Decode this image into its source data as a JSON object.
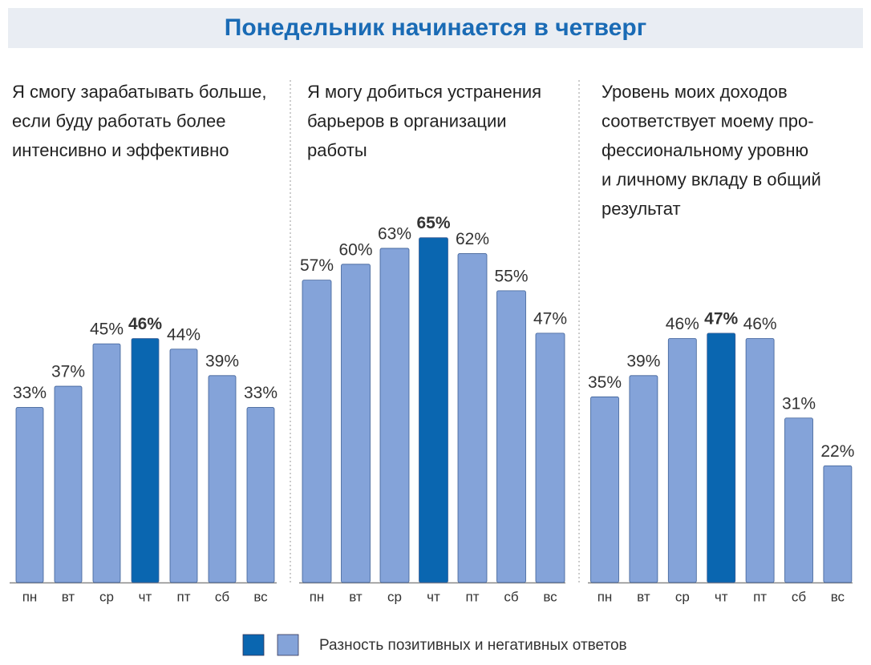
{
  "title": "Понедельник начинается в четверг",
  "legend": {
    "label": "Разность позитивных и негативных ответов",
    "colors": [
      "#0a66b0",
      "#84a3d9"
    ]
  },
  "chart_data": [
    {
      "type": "bar",
      "title": [
        "Я смогу зарабатывать больше,",
        "если буду работать более",
        "интенсивно и эффективно"
      ],
      "categories": [
        "пн",
        "вт",
        "ср",
        "чт",
        "пт",
        "сб",
        "вс"
      ],
      "values": [
        33,
        37,
        45,
        46,
        44,
        39,
        33
      ],
      "value_labels": [
        "33%",
        "37%",
        "45%",
        "46%",
        "44%",
        "39%",
        "33%"
      ],
      "color": "#84a3d9",
      "colors": [
        "#84a3d9",
        "#84a3d9",
        "#84a3d9",
        "#0a66b0",
        "#84a3d9",
        "#84a3d9",
        "#84a3d9"
      ]
    },
    {
      "type": "bar",
      "title": [
        "Я могу добиться устранения",
        "барьеров в организации",
        "работы"
      ],
      "categories": [
        "пн",
        "вт",
        "ср",
        "чт",
        "пт",
        "сб",
        "вс"
      ],
      "values": [
        57,
        60,
        63,
        65,
        62,
        55,
        47
      ],
      "value_labels": [
        "57%",
        "60%",
        "63%",
        "65%",
        "62%",
        "55%",
        "47%"
      ],
      "color": "#84a3d9",
      "colors": [
        "#84a3d9",
        "#84a3d9",
        "#84a3d9",
        "#0a66b0",
        "#84a3d9",
        "#84a3d9",
        "#84a3d9"
      ]
    },
    {
      "type": "bar",
      "title": [
        "Уровень моих доходов",
        "соответствует моему про-",
        "фессиональному уровню",
        "и личному вкладу в общий",
        "результат"
      ],
      "categories": [
        "пн",
        "вт",
        "ср",
        "чт",
        "пт",
        "сб",
        "вс"
      ],
      "values": [
        35,
        39,
        46,
        47,
        46,
        31,
        22
      ],
      "value_labels": [
        "35%",
        "39%",
        "46%",
        "47%",
        "46%",
        "31%",
        "22%"
      ],
      "color": "#84a3d9",
      "colors": [
        "#84a3d9",
        "#84a3d9",
        "#84a3d9",
        "#0a66b0",
        "#84a3d9",
        "#84a3d9",
        "#84a3d9"
      ]
    }
  ]
}
